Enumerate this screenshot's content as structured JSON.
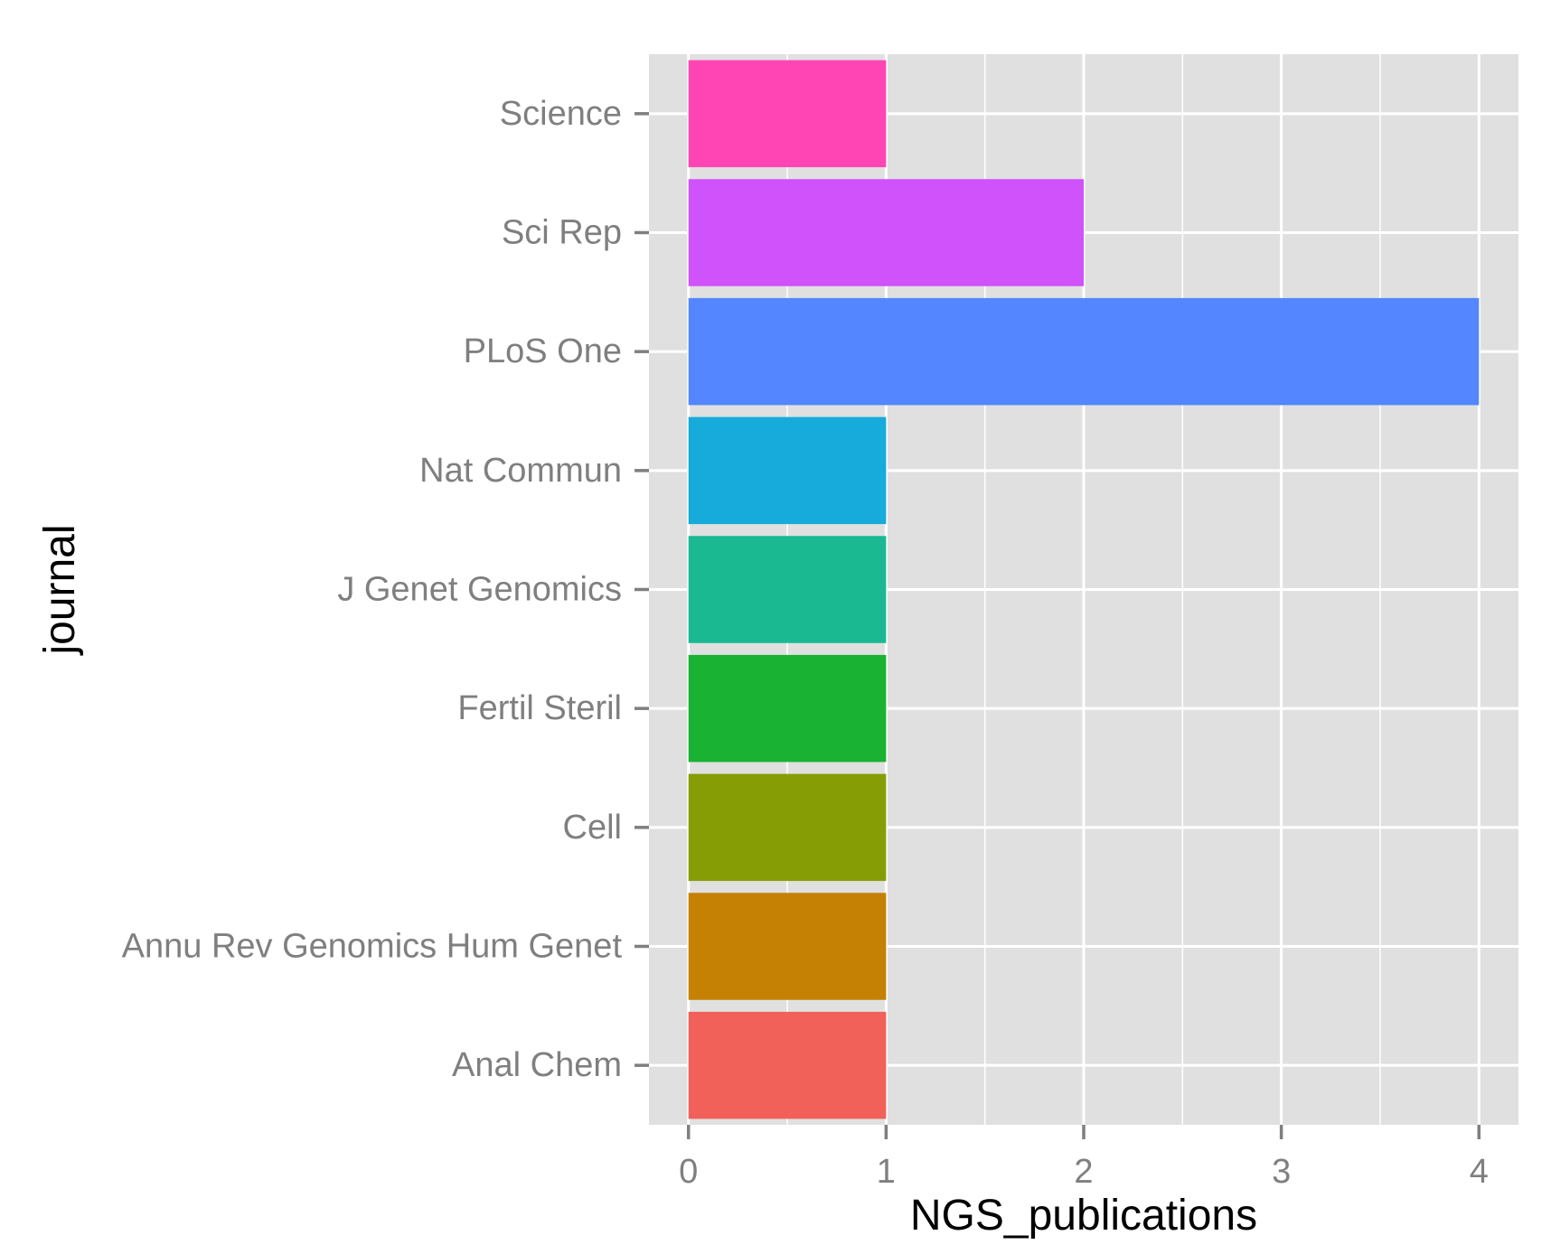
{
  "chart_data": {
    "type": "bar",
    "orientation": "horizontal",
    "title": "",
    "xlabel": "NGS_publications",
    "ylabel": "journal",
    "categories": [
      "Anal Chem",
      "Annu Rev Genomics Hum Genet",
      "Cell",
      "Fertil Steril",
      "J Genet Genomics",
      "Nat Commun",
      "PLoS One",
      "Sci Rep",
      "Science"
    ],
    "values": [
      1,
      1,
      1,
      1,
      1,
      1,
      4,
      2,
      1
    ],
    "colors": [
      "#F2605A",
      "#C48104",
      "#869D05",
      "#19B232",
      "#1AB991",
      "#16ABDB",
      "#5386FF",
      "#CF52FA",
      "#FF45B4"
    ],
    "xlim": [
      -0.2,
      4.2
    ],
    "xticks": [
      0,
      1,
      2,
      3,
      4
    ],
    "xtick_labels": [
      "0",
      "1",
      "2",
      "3",
      "4"
    ],
    "grid": true,
    "background": "#E0E0E0",
    "gridline_color": "#FFFFFF",
    "legend": "none"
  }
}
